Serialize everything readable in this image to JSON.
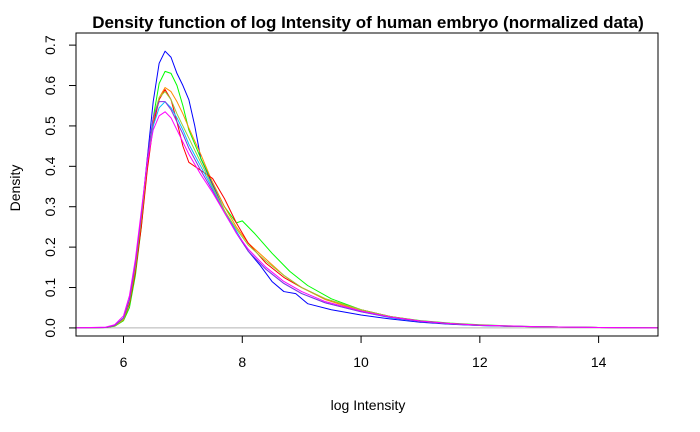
{
  "chart_data": {
    "type": "line",
    "title": "Density function of log Intensity of human embryo (normalized data)",
    "xlabel": "log Intensity",
    "ylabel": "Density",
    "xlim": [
      5.2,
      15.0
    ],
    "ylim": [
      -0.02,
      0.73
    ],
    "xticks": [
      6,
      8,
      10,
      12,
      14
    ],
    "yticks": [
      0.0,
      0.1,
      0.2,
      0.3,
      0.4,
      0.5,
      0.6,
      0.7
    ],
    "xtick_labels": [
      "6",
      "8",
      "10",
      "12",
      "14"
    ],
    "ytick_labels": [
      "0.0",
      "0.1",
      "0.2",
      "0.3",
      "0.4",
      "0.5",
      "0.6",
      "0.7"
    ],
    "grid": false,
    "legend": "none",
    "baseline": {
      "y": 0,
      "color": "#b3b3b3"
    },
    "series": [
      {
        "color": "#0000ff",
        "points": [
          [
            5.2,
            0
          ],
          [
            5.7,
            0.001
          ],
          [
            5.85,
            0.005
          ],
          [
            6.0,
            0.02
          ],
          [
            6.1,
            0.06
          ],
          [
            6.2,
            0.14
          ],
          [
            6.3,
            0.27
          ],
          [
            6.4,
            0.42
          ],
          [
            6.5,
            0.56
          ],
          [
            6.6,
            0.655
          ],
          [
            6.7,
            0.685
          ],
          [
            6.8,
            0.67
          ],
          [
            6.9,
            0.63
          ],
          [
            7.0,
            0.6
          ],
          [
            7.1,
            0.565
          ],
          [
            7.2,
            0.5
          ],
          [
            7.3,
            0.42
          ],
          [
            7.5,
            0.355
          ],
          [
            7.7,
            0.29
          ],
          [
            7.9,
            0.235
          ],
          [
            8.1,
            0.19
          ],
          [
            8.3,
            0.155
          ],
          [
            8.5,
            0.115
          ],
          [
            8.7,
            0.09
          ],
          [
            8.9,
            0.085
          ],
          [
            9.1,
            0.06
          ],
          [
            9.5,
            0.045
          ],
          [
            10.0,
            0.032
          ],
          [
            10.5,
            0.022
          ],
          [
            11.0,
            0.014
          ],
          [
            11.5,
            0.009
          ],
          [
            12.0,
            0.006
          ],
          [
            12.5,
            0.004
          ],
          [
            13.0,
            0.003
          ],
          [
            14.0,
            0.001
          ],
          [
            15.0,
            0
          ]
        ]
      },
      {
        "color": "#00ff00",
        "points": [
          [
            5.2,
            0
          ],
          [
            5.7,
            0.001
          ],
          [
            5.85,
            0.004
          ],
          [
            6.0,
            0.018
          ],
          [
            6.1,
            0.05
          ],
          [
            6.2,
            0.13
          ],
          [
            6.3,
            0.25
          ],
          [
            6.4,
            0.4
          ],
          [
            6.5,
            0.52
          ],
          [
            6.6,
            0.605
          ],
          [
            6.7,
            0.635
          ],
          [
            6.8,
            0.63
          ],
          [
            6.9,
            0.6
          ],
          [
            7.0,
            0.55
          ],
          [
            7.1,
            0.49
          ],
          [
            7.3,
            0.42
          ],
          [
            7.5,
            0.36
          ],
          [
            7.7,
            0.3
          ],
          [
            7.9,
            0.26
          ],
          [
            8.0,
            0.265
          ],
          [
            8.2,
            0.235
          ],
          [
            8.5,
            0.185
          ],
          [
            8.8,
            0.14
          ],
          [
            9.1,
            0.105
          ],
          [
            9.5,
            0.072
          ],
          [
            10.0,
            0.045
          ],
          [
            10.5,
            0.028
          ],
          [
            11.0,
            0.018
          ],
          [
            11.5,
            0.012
          ],
          [
            12.0,
            0.008
          ],
          [
            12.5,
            0.005
          ],
          [
            13.0,
            0.003
          ],
          [
            14.0,
            0.001
          ],
          [
            15.0,
            0
          ]
        ]
      },
      {
        "color": "#ff8c00",
        "points": [
          [
            5.2,
            0
          ],
          [
            5.7,
            0.001
          ],
          [
            5.85,
            0.005
          ],
          [
            6.0,
            0.02
          ],
          [
            6.1,
            0.06
          ],
          [
            6.2,
            0.14
          ],
          [
            6.3,
            0.26
          ],
          [
            6.4,
            0.4
          ],
          [
            6.5,
            0.51
          ],
          [
            6.6,
            0.57
          ],
          [
            6.7,
            0.595
          ],
          [
            6.8,
            0.585
          ],
          [
            6.9,
            0.56
          ],
          [
            7.0,
            0.53
          ],
          [
            7.1,
            0.495
          ],
          [
            7.3,
            0.43
          ],
          [
            7.5,
            0.36
          ],
          [
            7.7,
            0.3
          ],
          [
            7.9,
            0.25
          ],
          [
            8.1,
            0.21
          ],
          [
            8.4,
            0.17
          ],
          [
            8.7,
            0.13
          ],
          [
            9.0,
            0.1
          ],
          [
            9.4,
            0.07
          ],
          [
            10.0,
            0.042
          ],
          [
            10.5,
            0.026
          ],
          [
            11.0,
            0.016
          ],
          [
            11.5,
            0.01
          ],
          [
            12.0,
            0.007
          ],
          [
            12.5,
            0.004
          ],
          [
            13.0,
            0.003
          ],
          [
            14.0,
            0.001
          ],
          [
            15.0,
            0
          ]
        ]
      },
      {
        "color": "#ff0000",
        "points": [
          [
            5.2,
            0
          ],
          [
            5.7,
            0.001
          ],
          [
            5.85,
            0.005
          ],
          [
            6.0,
            0.022
          ],
          [
            6.1,
            0.06
          ],
          [
            6.2,
            0.14
          ],
          [
            6.3,
            0.25
          ],
          [
            6.4,
            0.39
          ],
          [
            6.5,
            0.5
          ],
          [
            6.6,
            0.565
          ],
          [
            6.7,
            0.59
          ],
          [
            6.8,
            0.565
          ],
          [
            6.9,
            0.51
          ],
          [
            7.0,
            0.45
          ],
          [
            7.1,
            0.41
          ],
          [
            7.3,
            0.39
          ],
          [
            7.5,
            0.37
          ],
          [
            7.7,
            0.32
          ],
          [
            7.9,
            0.26
          ],
          [
            8.1,
            0.21
          ],
          [
            8.4,
            0.16
          ],
          [
            8.7,
            0.125
          ],
          [
            9.0,
            0.1
          ],
          [
            9.4,
            0.072
          ],
          [
            10.0,
            0.045
          ],
          [
            10.5,
            0.028
          ],
          [
            11.0,
            0.017
          ],
          [
            11.5,
            0.011
          ],
          [
            12.0,
            0.007
          ],
          [
            12.5,
            0.004
          ],
          [
            13.0,
            0.003
          ],
          [
            14.0,
            0.001
          ],
          [
            15.0,
            0
          ]
        ]
      },
      {
        "color": "#00bfff",
        "points": [
          [
            5.2,
            0
          ],
          [
            5.7,
            0.001
          ],
          [
            5.85,
            0.006
          ],
          [
            6.0,
            0.025
          ],
          [
            6.1,
            0.07
          ],
          [
            6.2,
            0.16
          ],
          [
            6.3,
            0.28
          ],
          [
            6.4,
            0.41
          ],
          [
            6.5,
            0.5
          ],
          [
            6.6,
            0.545
          ],
          [
            6.7,
            0.56
          ],
          [
            6.8,
            0.545
          ],
          [
            6.9,
            0.52
          ],
          [
            7.0,
            0.49
          ],
          [
            7.1,
            0.455
          ],
          [
            7.3,
            0.4
          ],
          [
            7.5,
            0.345
          ],
          [
            7.7,
            0.29
          ],
          [
            7.9,
            0.24
          ],
          [
            8.1,
            0.19
          ],
          [
            8.4,
            0.145
          ],
          [
            8.7,
            0.11
          ],
          [
            9.0,
            0.085
          ],
          [
            9.4,
            0.062
          ],
          [
            10.0,
            0.04
          ],
          [
            10.5,
            0.025
          ],
          [
            11.0,
            0.016
          ],
          [
            11.5,
            0.01
          ],
          [
            12.0,
            0.006
          ],
          [
            12.5,
            0.004
          ],
          [
            13.0,
            0.003
          ],
          [
            14.0,
            0.001
          ],
          [
            15.0,
            0
          ]
        ]
      },
      {
        "color": "#9acd32",
        "points": [
          [
            5.2,
            0
          ],
          [
            5.7,
            0.001
          ],
          [
            5.85,
            0.005
          ],
          [
            6.0,
            0.022
          ],
          [
            6.1,
            0.065
          ],
          [
            6.2,
            0.15
          ],
          [
            6.3,
            0.27
          ],
          [
            6.4,
            0.41
          ],
          [
            6.5,
            0.52
          ],
          [
            6.6,
            0.57
          ],
          [
            6.7,
            0.585
          ],
          [
            6.8,
            0.565
          ],
          [
            6.9,
            0.53
          ],
          [
            7.0,
            0.5
          ],
          [
            7.1,
            0.47
          ],
          [
            7.3,
            0.41
          ],
          [
            7.5,
            0.35
          ],
          [
            7.7,
            0.29
          ],
          [
            7.9,
            0.245
          ],
          [
            8.1,
            0.205
          ],
          [
            8.4,
            0.165
          ],
          [
            8.7,
            0.13
          ],
          [
            9.0,
            0.1
          ],
          [
            9.4,
            0.072
          ],
          [
            10.0,
            0.045
          ],
          [
            10.5,
            0.028
          ],
          [
            11.0,
            0.017
          ],
          [
            11.5,
            0.011
          ],
          [
            12.0,
            0.007
          ],
          [
            12.5,
            0.004
          ],
          [
            13.0,
            0.003
          ],
          [
            14.0,
            0.001
          ],
          [
            15.0,
            0
          ]
        ]
      },
      {
        "color": "#8a2be2",
        "points": [
          [
            5.2,
            0
          ],
          [
            5.7,
            0.001
          ],
          [
            5.85,
            0.006
          ],
          [
            6.0,
            0.025
          ],
          [
            6.1,
            0.07
          ],
          [
            6.2,
            0.16
          ],
          [
            6.3,
            0.28
          ],
          [
            6.4,
            0.42
          ],
          [
            6.5,
            0.52
          ],
          [
            6.6,
            0.56
          ],
          [
            6.7,
            0.56
          ],
          [
            6.8,
            0.54
          ],
          [
            6.9,
            0.51
          ],
          [
            7.0,
            0.48
          ],
          [
            7.1,
            0.445
          ],
          [
            7.3,
            0.39
          ],
          [
            7.5,
            0.34
          ],
          [
            7.7,
            0.285
          ],
          [
            7.9,
            0.235
          ],
          [
            8.1,
            0.19
          ],
          [
            8.4,
            0.145
          ],
          [
            8.7,
            0.11
          ],
          [
            9.0,
            0.085
          ],
          [
            9.4,
            0.062
          ],
          [
            10.0,
            0.04
          ],
          [
            10.5,
            0.026
          ],
          [
            11.0,
            0.016
          ],
          [
            11.5,
            0.01
          ],
          [
            12.0,
            0.006
          ],
          [
            12.5,
            0.004
          ],
          [
            13.0,
            0.003
          ],
          [
            14.0,
            0.001
          ],
          [
            15.0,
            0
          ]
        ]
      },
      {
        "color": "#ff00ff",
        "points": [
          [
            5.2,
            0
          ],
          [
            5.7,
            0.002
          ],
          [
            5.85,
            0.008
          ],
          [
            6.0,
            0.03
          ],
          [
            6.1,
            0.08
          ],
          [
            6.2,
            0.17
          ],
          [
            6.3,
            0.29
          ],
          [
            6.4,
            0.41
          ],
          [
            6.5,
            0.49
          ],
          [
            6.6,
            0.525
          ],
          [
            6.7,
            0.535
          ],
          [
            6.8,
            0.52
          ],
          [
            6.9,
            0.49
          ],
          [
            7.0,
            0.46
          ],
          [
            7.1,
            0.43
          ],
          [
            7.3,
            0.38
          ],
          [
            7.5,
            0.335
          ],
          [
            7.7,
            0.285
          ],
          [
            7.9,
            0.235
          ],
          [
            8.1,
            0.195
          ],
          [
            8.4,
            0.15
          ],
          [
            8.7,
            0.115
          ],
          [
            9.0,
            0.09
          ],
          [
            9.4,
            0.065
          ],
          [
            10.0,
            0.042
          ],
          [
            10.5,
            0.027
          ],
          [
            11.0,
            0.017
          ],
          [
            11.5,
            0.011
          ],
          [
            12.0,
            0.007
          ],
          [
            12.5,
            0.005
          ],
          [
            13.0,
            0.003
          ],
          [
            14.0,
            0.001
          ],
          [
            15.0,
            0
          ]
        ]
      }
    ]
  }
}
